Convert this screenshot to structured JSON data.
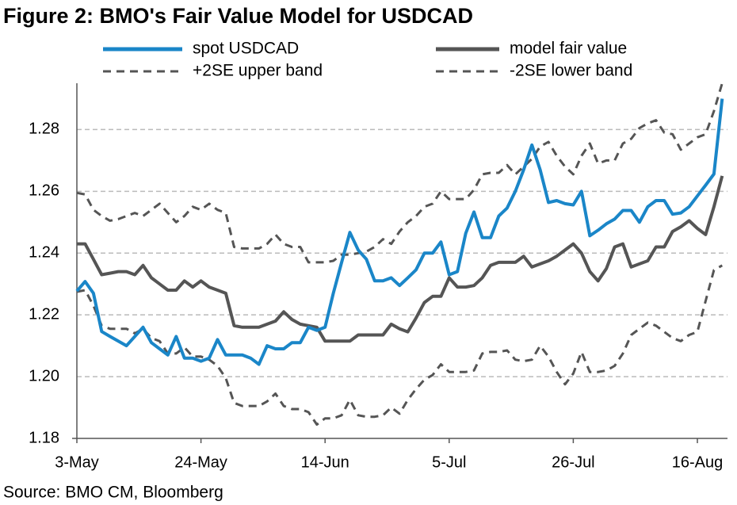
{
  "chart_data": {
    "type": "line",
    "title": "Figure 2: BMO's Fair Value Model for USDCAD",
    "source": "Source: BMO CM, Bloomberg",
    "categories": [
      "3-May",
      null,
      null,
      null,
      null,
      null,
      null,
      null,
      null,
      null,
      null,
      null,
      null,
      null,
      null,
      "24-May",
      null,
      null,
      null,
      null,
      null,
      null,
      null,
      null,
      null,
      null,
      null,
      null,
      null,
      null,
      "14-Jun",
      null,
      null,
      null,
      null,
      null,
      null,
      null,
      null,
      null,
      null,
      null,
      null,
      null,
      null,
      "5-Jul",
      null,
      null,
      null,
      null,
      null,
      null,
      null,
      null,
      null,
      null,
      null,
      null,
      null,
      null,
      "26-Jul",
      null,
      null,
      null,
      null,
      null,
      null,
      null,
      null,
      null,
      null,
      null,
      null,
      null,
      null,
      "16-Aug",
      null,
      null,
      null
    ],
    "series": [
      {
        "name": "spot USDCAD",
        "color": "#1a86c8",
        "dashed": false,
        "values": [
          1.2277,
          1.2308,
          1.227,
          1.2146,
          1.213,
          1.2115,
          1.21,
          1.213,
          1.216,
          1.211,
          1.209,
          1.207,
          1.213,
          1.206,
          1.206,
          1.205,
          1.206,
          1.212,
          1.207,
          1.207,
          1.207,
          1.206,
          1.204,
          1.21,
          1.209,
          1.209,
          1.211,
          1.211,
          1.216,
          1.215,
          1.216,
          1.227,
          1.237,
          1.2467,
          1.241,
          1.238,
          1.231,
          1.231,
          1.232,
          1.2295,
          1.232,
          1.2346,
          1.24,
          1.24,
          1.2436,
          1.233,
          1.234,
          1.2464,
          1.2533,
          1.245,
          1.245,
          1.252,
          1.2546,
          1.26,
          1.267,
          1.275,
          1.267,
          1.2564,
          1.257,
          1.256,
          1.2556,
          1.26,
          1.2456,
          1.2474,
          1.2495,
          1.251,
          1.2538,
          1.2538,
          1.25,
          1.255,
          1.257,
          1.257,
          1.2526,
          1.253,
          1.255,
          1.2585,
          1.262,
          1.2656,
          1.29
        ]
      },
      {
        "name": "model fair value",
        "color": "#555555",
        "dashed": false,
        "values": [
          1.243,
          1.243,
          1.238,
          1.233,
          1.2335,
          1.234,
          1.234,
          1.233,
          1.236,
          1.232,
          1.23,
          1.228,
          1.228,
          1.231,
          1.229,
          1.231,
          1.229,
          1.228,
          1.227,
          1.2165,
          1.216,
          1.216,
          1.216,
          1.217,
          1.218,
          1.221,
          1.2185,
          1.217,
          1.2165,
          1.216,
          1.2115,
          1.2115,
          1.2115,
          1.2115,
          1.2135,
          1.2135,
          1.2135,
          1.2135,
          1.217,
          1.2155,
          1.2145,
          1.219,
          1.224,
          1.226,
          1.226,
          1.232,
          1.229,
          1.229,
          1.2295,
          1.232,
          1.236,
          1.237,
          1.237,
          1.237,
          1.239,
          1.2355,
          1.2365,
          1.2375,
          1.239,
          1.241,
          1.243,
          1.24,
          1.234,
          1.231,
          1.235,
          1.242,
          1.243,
          1.2355,
          1.2365,
          1.2375,
          1.242,
          1.242,
          1.247,
          1.2485,
          1.2505,
          1.248,
          1.246,
          1.255,
          1.265
        ]
      },
      {
        "name": "+2SE upper band",
        "color": "#555555",
        "dashed": true,
        "values": [
          1.2595,
          1.259,
          1.254,
          1.252,
          1.2505,
          1.251,
          1.252,
          1.253,
          1.252,
          1.254,
          1.256,
          1.253,
          1.25,
          1.252,
          1.255,
          1.254,
          1.256,
          1.254,
          1.253,
          1.242,
          1.2415,
          1.2415,
          1.2415,
          1.243,
          1.246,
          1.243,
          1.242,
          1.242,
          1.237,
          1.237,
          1.237,
          1.2375,
          1.2395,
          1.2395,
          1.24,
          1.2405,
          1.242,
          1.2445,
          1.243,
          1.247,
          1.25,
          1.252,
          1.255,
          1.256,
          1.26,
          1.2575,
          1.2575,
          1.2575,
          1.2605,
          1.2655,
          1.266,
          1.266,
          1.2685,
          1.2655,
          1.268,
          1.2705,
          1.2745,
          1.276,
          1.2715,
          1.268,
          1.2655,
          1.2715,
          1.2755,
          1.269,
          1.27,
          1.27,
          1.2755,
          1.277,
          1.2805,
          1.282,
          1.283,
          1.279,
          1.2785,
          1.2735,
          1.2755,
          1.2775,
          1.2785,
          1.286,
          1.295
        ]
      },
      {
        "name": "-2SE lower band",
        "color": "#555555",
        "dashed": true,
        "values": [
          1.2275,
          1.228,
          1.223,
          1.2165,
          1.2155,
          1.2155,
          1.2155,
          1.214,
          1.2155,
          1.2125,
          1.2115,
          1.2075,
          1.2075,
          1.2095,
          1.2065,
          1.2065,
          1.2055,
          1.2035,
          1.1995,
          1.1915,
          1.1905,
          1.1905,
          1.1905,
          1.192,
          1.1945,
          1.1905,
          1.1895,
          1.1895,
          1.1885,
          1.1845,
          1.1865,
          1.1865,
          1.1875,
          1.1925,
          1.1875,
          1.187,
          1.187,
          1.1875,
          1.19,
          1.188,
          1.1925,
          1.196,
          1.199,
          1.2005,
          1.204,
          1.2015,
          1.2015,
          1.2015,
          1.202,
          1.2075,
          1.208,
          1.208,
          1.2085,
          1.2055,
          1.205,
          1.2055,
          1.21,
          1.2065,
          1.2015,
          1.1975,
          1.201,
          1.208,
          1.2015,
          1.2015,
          1.202,
          1.2035,
          1.2075,
          1.2135,
          1.2155,
          1.2175,
          1.2165,
          1.2145,
          1.2125,
          1.2115,
          1.2135,
          1.2145,
          1.2245,
          1.2345,
          1.236
        ]
      }
    ],
    "ylim": [
      1.18,
      1.295
    ],
    "yticks": [
      1.18,
      {
        "value": 1.2,
        "label": "1.20"
      },
      1.22,
      1.24,
      1.26,
      1.28
    ],
    "grid": true
  }
}
